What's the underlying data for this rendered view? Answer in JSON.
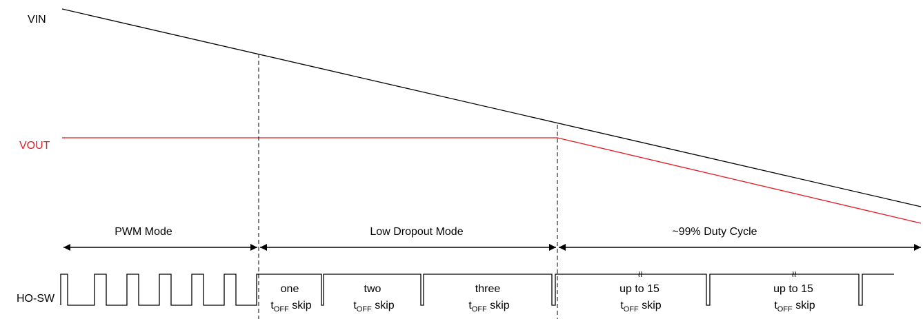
{
  "signals": {
    "vin": {
      "label": "VIN",
      "color": "#000000"
    },
    "vout": {
      "label": "VOUT",
      "color": "#e31b23"
    },
    "ho_sw": {
      "label": "HO-SW",
      "color": "#000000"
    }
  },
  "modes": [
    {
      "label": "PWM Mode"
    },
    {
      "label": "Low Dropout Mode"
    },
    {
      "label": "~99% Duty Cycle"
    }
  ],
  "skip_labels": [
    {
      "line1": "one",
      "t": "t",
      "sub": "OFF",
      "rest": " skip"
    },
    {
      "line1": "two",
      "t": "t",
      "sub": "OFF",
      "rest": " skip"
    },
    {
      "line1": "three",
      "t": "t",
      "sub": "OFF",
      "rest": " skip"
    },
    {
      "line1": "up to 15",
      "t": "t",
      "sub": "OFF",
      "rest": " skip"
    },
    {
      "line1": "up to 15",
      "t": "t",
      "sub": "OFF",
      "rest": " skip"
    }
  ],
  "break_symbol": "≈"
}
